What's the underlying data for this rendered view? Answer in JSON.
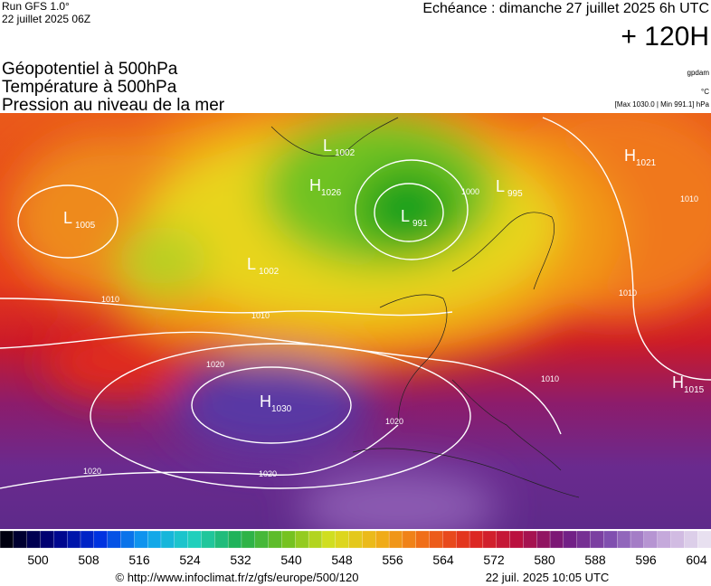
{
  "header": {
    "run": "Run GFS 1.0°",
    "run_date": "22 juillet 2025 06Z",
    "valid": "Echéance : dimanche 27 juillet 2025 6h UTC",
    "lead": "+ 120H"
  },
  "fields": [
    "Géopotentiel à 500hPa",
    "Température à 500hPa",
    "Pression au niveau de la mer"
  ],
  "units": {
    "geopotential": "gpdam",
    "temperature": "°C",
    "pressure": "[Max 1030.0 | Min 991.1] hPa"
  },
  "centers": [
    {
      "type": "L",
      "value": "1002"
    },
    {
      "type": "H",
      "value": "1026"
    },
    {
      "type": "L",
      "value": "991"
    },
    {
      "type": "L",
      "value": "995"
    },
    {
      "type": "H",
      "value": "1021"
    },
    {
      "type": "L",
      "value": "1005"
    },
    {
      "type": "L",
      "value": "1002"
    },
    {
      "type": "H",
      "value": "1030"
    },
    {
      "type": "H",
      "value": "1015"
    }
  ],
  "isobar_labels": [
    "1000",
    "1010",
    "1010",
    "1010",
    "1010",
    "1010",
    "1020",
    "1020",
    "1020",
    "1020"
  ],
  "colorbar_labels": [
    500,
    508,
    516,
    524,
    532,
    540,
    548,
    556,
    564,
    572,
    580,
    588,
    596,
    604
  ],
  "footer": {
    "source": "© http://www.infoclimat.fr/z/gfs/europe/500/120",
    "generated": "22 juil. 2025 10:05 UTC"
  }
}
